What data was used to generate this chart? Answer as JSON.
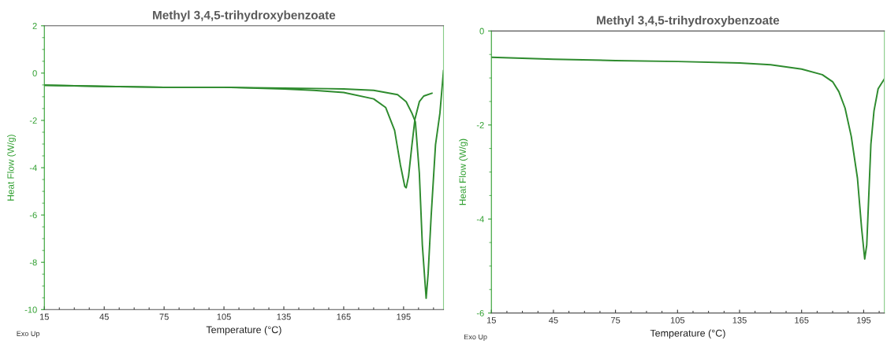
{
  "chart_data": [
    {
      "type": "line",
      "title": "Methyl 3,4,5-trihydroxybenzoate",
      "xlabel": "Temperature (°C)",
      "ylabel": "Heat Flow (W/g)",
      "annotations": [
        "Exo Up"
      ],
      "xlim": [
        15,
        215
      ],
      "xticks": [
        15,
        45,
        75,
        105,
        135,
        165,
        195
      ],
      "ylim": [
        -10,
        2
      ],
      "yticks": [
        -10,
        -8,
        -6,
        -4,
        -2,
        0,
        2
      ],
      "grid": false,
      "legend": false,
      "series": [
        {
          "color": "#2e8b2e",
          "x": [
            15,
            45,
            75,
            105,
            135,
            150,
            165,
            180,
            186,
            190.5,
            193.4,
            195.6,
            196.3,
            197.5,
            199.2,
            200.7,
            202.9,
            205.1,
            209.2
          ],
          "values": [
            -0.51,
            -0.56,
            -0.6,
            -0.6,
            -0.67,
            -0.73,
            -0.82,
            -1.09,
            -1.45,
            -2.42,
            -3.88,
            -4.79,
            -4.85,
            -4.36,
            -3.03,
            -1.94,
            -1.21,
            -0.97,
            -0.85
          ]
        },
        {
          "color": "#2e8b2e",
          "x": [
            15,
            45,
            75,
            105,
            135,
            150,
            165,
            180,
            192,
            196.3,
            199.2,
            200.9,
            202.9,
            204.4,
            206.3,
            207.3,
            208.8,
            211,
            213.2,
            215
          ],
          "values": [
            -0.51,
            -0.56,
            -0.6,
            -0.6,
            -0.64,
            -0.65,
            -0.67,
            -0.73,
            -0.91,
            -1.21,
            -1.7,
            -2.06,
            -4.24,
            -7.27,
            -9.52,
            -8.48,
            -6.06,
            -3.03,
            -1.7,
            0.1
          ]
        }
      ]
    },
    {
      "type": "line",
      "title": "Methyl 3,4,5-trihydroxybenzoate",
      "xlabel": "Temperature (°C)",
      "ylabel": "Heat Flow (W/g)",
      "annotations": [
        "Exo Up"
      ],
      "xlim": [
        15,
        205
      ],
      "xticks": [
        15,
        45,
        75,
        105,
        135,
        165,
        195
      ],
      "ylim": [
        -6,
        0
      ],
      "yticks": [
        -6,
        -4,
        -2,
        0
      ],
      "grid": false,
      "legend": false,
      "series": [
        {
          "color": "#2e8b2e",
          "x": [
            15,
            45,
            75,
            105,
            135,
            150,
            165,
            175,
            180,
            183,
            186,
            189,
            192,
            194,
            195.5,
            196.5,
            197.5,
            198.5,
            200,
            202,
            205
          ],
          "values": [
            -0.56,
            -0.6,
            -0.63,
            -0.65,
            -0.68,
            -0.72,
            -0.81,
            -0.93,
            -1.08,
            -1.29,
            -1.64,
            -2.24,
            -3.13,
            -4.19,
            -4.85,
            -4.55,
            -3.48,
            -2.41,
            -1.7,
            -1.23,
            -1.02
          ]
        }
      ]
    }
  ]
}
